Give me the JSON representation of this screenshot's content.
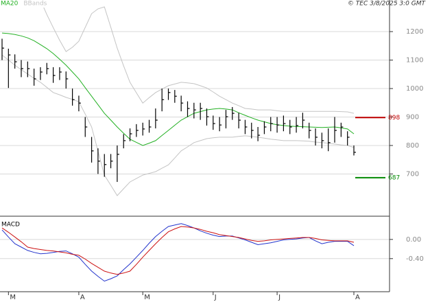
{
  "header": {
    "copyright": "© TEC 3/8/2025 3:0 GMT"
  },
  "chart_data": [
    {
      "type": "ohlc",
      "color": "#000000",
      "categories": [
        null,
        "M",
        null,
        null,
        null,
        null,
        null,
        null,
        null,
        null,
        null,
        null,
        "A",
        null,
        null,
        null,
        null,
        null,
        null,
        null,
        null,
        null,
        "M",
        null,
        null,
        null,
        null,
        null,
        null,
        null,
        null,
        null,
        null,
        "J",
        null,
        null,
        null,
        null,
        null,
        null,
        null,
        null,
        null,
        "J",
        null,
        null,
        null,
        null,
        null,
        null,
        null,
        null,
        null,
        null,
        null,
        "A"
      ],
      "high": [
        1175,
        1140,
        1120,
        1100,
        1095,
        1070,
        1075,
        1090,
        1075,
        1075,
        1060,
        1000,
        975,
        900,
        830,
        790,
        770,
        770,
        800,
        840,
        860,
        875,
        880,
        890,
        930,
        1000,
        1000,
        995,
        975,
        955,
        950,
        950,
        930,
        905,
        900,
        925,
        935,
        915,
        890,
        880,
        865,
        885,
        900,
        900,
        905,
        890,
        900,
        915,
        880,
        860,
        845,
        860,
        900,
        880,
        850,
        800
      ],
      "low": [
        1100,
        1002,
        1070,
        1040,
        1040,
        1010,
        1030,
        1050,
        1020,
        1030,
        1000,
        940,
        920,
        830,
        740,
        700,
        690,
        720,
        672,
        790,
        815,
        830,
        835,
        845,
        860,
        920,
        960,
        950,
        920,
        900,
        895,
        890,
        870,
        855,
        850,
        860,
        890,
        860,
        840,
        825,
        815,
        840,
        850,
        845,
        850,
        840,
        845,
        860,
        825,
        800,
        790,
        780,
        810,
        830,
        800,
        765
      ],
      "close": [
        1142,
        1118,
        1094,
        1070,
        1070,
        1034,
        1058,
        1070,
        1046,
        1058,
        1034,
        961,
        949,
        865,
        781,
        745,
        733,
        745,
        769,
        817,
        841,
        853,
        858,
        865,
        889,
        961,
        986,
        973,
        949,
        930,
        925,
        930,
        901,
        877,
        872,
        901,
        913,
        889,
        865,
        853,
        836,
        865,
        877,
        872,
        877,
        865,
        870,
        889,
        853,
        829,
        817,
        810,
        853,
        865,
        829,
        776
      ],
      "series": [
        {
          "name": "MA20",
          "color": "#22b022",
          "values": [
            1195,
            1193,
            1190,
            1185,
            1178,
            1168,
            1154,
            1140,
            1123,
            1103,
            1082,
            1058,
            1034,
            1003,
            973,
            943,
            913,
            889,
            865,
            843,
            822,
            811,
            800,
            808,
            817,
            835,
            853,
            871,
            889,
            901,
            913,
            919,
            925,
            928,
            930,
            928,
            925,
            915,
            906,
            897,
            889,
            883,
            877,
            873,
            870,
            868,
            867,
            866,
            865,
            864,
            863,
            864,
            865,
            862,
            858,
            841
          ]
        },
        {
          "name": "BBands",
          "color": "#c4c4c4",
          "upper": [
            1380,
            1370,
            1360,
            1350,
            1340,
            1330,
            1311,
            1260,
            1214,
            1170,
            1130,
            1145,
            1166,
            1215,
            1263,
            1280,
            1287,
            1215,
            1142,
            1080,
            1022,
            985,
            949,
            968,
            986,
            998,
            1010,
            1016,
            1022,
            1020,
            1017,
            1010,
            1002,
            988,
            973,
            961,
            949,
            940,
            930,
            928,
            925,
            925,
            925,
            922,
            920,
            920,
            920,
            920,
            920,
            920,
            920,
            920,
            920,
            919,
            918,
            913
          ],
          "lower": [
            1118,
            1100,
            1082,
            1066,
            1051,
            1036,
            1022,
            1004,
            986,
            978,
            969,
            962,
            954,
            910,
            865,
            780,
            696,
            660,
            624,
            648,
            672,
            684,
            696,
            702,
            708,
            720,
            732,
            756,
            781,
            795,
            810,
            817,
            824,
            827,
            829,
            829,
            829,
            832,
            834,
            832,
            829,
            826,
            822,
            820,
            817,
            817,
            817,
            816,
            815,
            812,
            810,
            808,
            805,
            802,
            800,
            793
          ]
        }
      ],
      "levels": [
        {
          "value": 898,
          "color": "#c00000"
        },
        {
          "value": 687,
          "color": "#008800"
        }
      ],
      "ylim": [
        554,
        1311
      ],
      "yticks": [
        700,
        800,
        900,
        1000,
        1100,
        1200
      ],
      "grid": true
    },
    {
      "type": "line",
      "title": "MACD",
      "series": [
        {
          "color": "#2233cc",
          "values": [
            0.2,
            0.05,
            -0.09,
            -0.16,
            -0.23,
            -0.27,
            -0.3,
            -0.29,
            -0.27,
            -0.25,
            -0.24,
            -0.3,
            -0.37,
            -0.52,
            -0.66,
            -0.77,
            -0.87,
            -0.82,
            -0.76,
            -0.63,
            -0.51,
            -0.37,
            -0.23,
            -0.08,
            0.06,
            0.17,
            0.27,
            0.3,
            0.33,
            0.29,
            0.24,
            0.18,
            0.13,
            0.09,
            0.06,
            0.07,
            0.07,
            0.03,
            -0.01,
            -0.06,
            -0.11,
            -0.09,
            -0.07,
            -0.04,
            -0.01,
            0.0,
            0.01,
            0.03,
            0.04,
            -0.03,
            -0.09,
            -0.06,
            -0.04,
            -0.04,
            -0.04,
            -0.13
          ]
        },
        {
          "color": "#cc1111",
          "values": [
            0.24,
            0.15,
            0.05,
            -0.05,
            -0.16,
            -0.19,
            -0.21,
            -0.23,
            -0.24,
            -0.26,
            -0.28,
            -0.31,
            -0.33,
            -0.41,
            -0.5,
            -0.58,
            -0.66,
            -0.7,
            -0.73,
            -0.7,
            -0.66,
            -0.52,
            -0.37,
            -0.23,
            -0.09,
            0.04,
            0.16,
            0.22,
            0.27,
            0.26,
            0.24,
            0.21,
            0.17,
            0.14,
            0.1,
            0.08,
            0.06,
            0.04,
            0.01,
            -0.02,
            -0.04,
            -0.03,
            -0.01,
            0.0,
            0.01,
            0.02,
            0.03,
            0.04,
            0.04,
            0.02,
            -0.01,
            -0.02,
            -0.03,
            -0.03,
            -0.03,
            -0.06
          ]
        }
      ],
      "ylim": [
        -1.09,
        0.47
      ],
      "yticks": [
        {
          "value": 0,
          "label": "0.00"
        },
        {
          "value": -0.4,
          "label": "-0.40"
        }
      ],
      "grid": true
    }
  ]
}
